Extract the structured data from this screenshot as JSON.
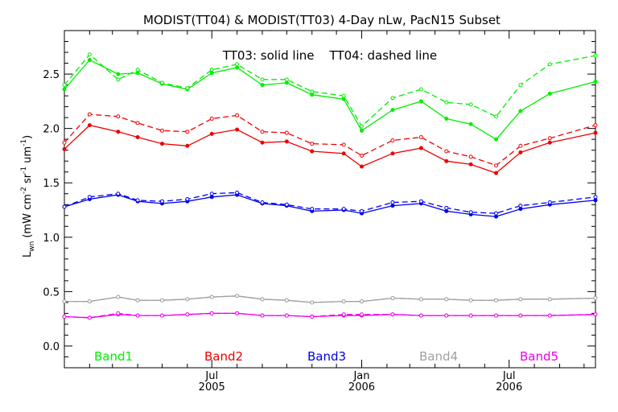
{
  "chart_data": {
    "type": "line",
    "title": "MODIST(TT04) & MODIST(TT03) 4-Day nLw, PacN15 Subset",
    "annotation": "TT03: solid line    TT04: dashed line",
    "ylabel_main": "L",
    "ylabel_sub": "wn",
    "ylabel_units": "(mW cm",
    "ylabel_sup1": "-2",
    "ylabel_mid": " sr",
    "ylabel_sup2": "-1",
    "ylabel_um": " um",
    "ylabel_sup3": "-1",
    "ylabel_close": ")",
    "ylim": [
      -0.2,
      2.9
    ],
    "yticks": [
      "0.0",
      "0.5",
      "1.0",
      "1.5",
      "2.0",
      "2.5"
    ],
    "ytick_values": [
      0.0,
      0.5,
      1.0,
      1.5,
      2.0,
      2.5
    ],
    "xlim": [
      "2005-01-01",
      "2006-10-15"
    ],
    "xticks": [
      {
        "date": "2005-07-01",
        "month": "Jul",
        "year": "2005"
      },
      {
        "date": "2006-01-01",
        "month": "Jan",
        "year": "2006"
      },
      {
        "date": "2006-07-01",
        "month": "Jul",
        "year": "2006"
      }
    ],
    "x": [
      "2005-01-01",
      "2005-02-01",
      "2005-03-08",
      "2005-04-01",
      "2005-05-01",
      "2005-06-01",
      "2005-07-01",
      "2005-08-01",
      "2005-09-01",
      "2005-10-01",
      "2005-11-01",
      "2005-12-10",
      "2006-01-01",
      "2006-02-08",
      "2006-03-15",
      "2006-04-15",
      "2006-05-15",
      "2006-06-15",
      "2006-07-15",
      "2006-08-20",
      "2006-10-15"
    ],
    "series": [
      {
        "name": "Band1",
        "color": "#00ee00",
        "solid": [
          2.36,
          2.63,
          2.5,
          2.51,
          2.41,
          2.36,
          2.51,
          2.56,
          2.4,
          2.42,
          2.31,
          2.27,
          1.98,
          2.17,
          2.25,
          2.09,
          2.04,
          1.9,
          2.16,
          2.32,
          2.43
        ],
        "dashed": [
          2.4,
          2.68,
          2.45,
          2.54,
          2.42,
          2.37,
          2.54,
          2.59,
          2.45,
          2.45,
          2.34,
          2.3,
          2.02,
          2.28,
          2.36,
          2.24,
          2.22,
          2.11,
          2.4,
          2.59,
          2.67
        ]
      },
      {
        "name": "Band2",
        "color": "#ee0000",
        "solid": [
          1.81,
          2.03,
          1.97,
          1.92,
          1.86,
          1.84,
          1.95,
          1.99,
          1.87,
          1.88,
          1.79,
          1.77,
          1.65,
          1.77,
          1.82,
          1.7,
          1.67,
          1.59,
          1.78,
          1.87,
          1.96
        ],
        "dashed": [
          1.87,
          2.13,
          2.11,
          2.05,
          1.98,
          1.97,
          2.09,
          2.12,
          1.97,
          1.96,
          1.86,
          1.85,
          1.75,
          1.89,
          1.92,
          1.79,
          1.74,
          1.66,
          1.84,
          1.91,
          2.03
        ]
      },
      {
        "name": "Band3",
        "color": "#0000ee",
        "solid": [
          1.28,
          1.35,
          1.39,
          1.33,
          1.31,
          1.33,
          1.37,
          1.39,
          1.31,
          1.29,
          1.24,
          1.25,
          1.22,
          1.29,
          1.31,
          1.24,
          1.21,
          1.19,
          1.26,
          1.3,
          1.34
        ],
        "dashed": [
          1.28,
          1.37,
          1.4,
          1.34,
          1.33,
          1.35,
          1.4,
          1.41,
          1.32,
          1.3,
          1.26,
          1.26,
          1.24,
          1.32,
          1.33,
          1.27,
          1.23,
          1.22,
          1.29,
          1.32,
          1.37
        ]
      },
      {
        "name": "Band4",
        "color": "#a0a0a0",
        "solid": [
          0.41,
          0.41,
          0.45,
          0.42,
          0.42,
          0.43,
          0.45,
          0.46,
          0.43,
          0.42,
          0.4,
          0.41,
          0.41,
          0.44,
          0.43,
          0.43,
          0.42,
          0.42,
          0.43,
          0.43,
          0.44
        ],
        "dashed": [
          0.41,
          0.41,
          0.45,
          0.42,
          0.42,
          0.43,
          0.45,
          0.46,
          0.43,
          0.42,
          0.4,
          0.41,
          0.41,
          0.44,
          0.43,
          0.43,
          0.42,
          0.42,
          0.43,
          0.43,
          0.44
        ]
      },
      {
        "name": "Band5",
        "color": "#ee00ee",
        "solid": [
          0.27,
          0.26,
          0.29,
          0.28,
          0.28,
          0.29,
          0.3,
          0.3,
          0.28,
          0.28,
          0.27,
          0.28,
          0.28,
          0.29,
          0.28,
          0.28,
          0.28,
          0.28,
          0.28,
          0.28,
          0.29
        ],
        "dashed": [
          0.27,
          0.26,
          0.3,
          0.28,
          0.28,
          0.29,
          0.3,
          0.3,
          0.28,
          0.28,
          0.27,
          0.29,
          0.29,
          0.29,
          0.28,
          0.28,
          0.28,
          0.28,
          0.28,
          0.28,
          0.29
        ]
      }
    ],
    "legend_placement": "bottom"
  }
}
